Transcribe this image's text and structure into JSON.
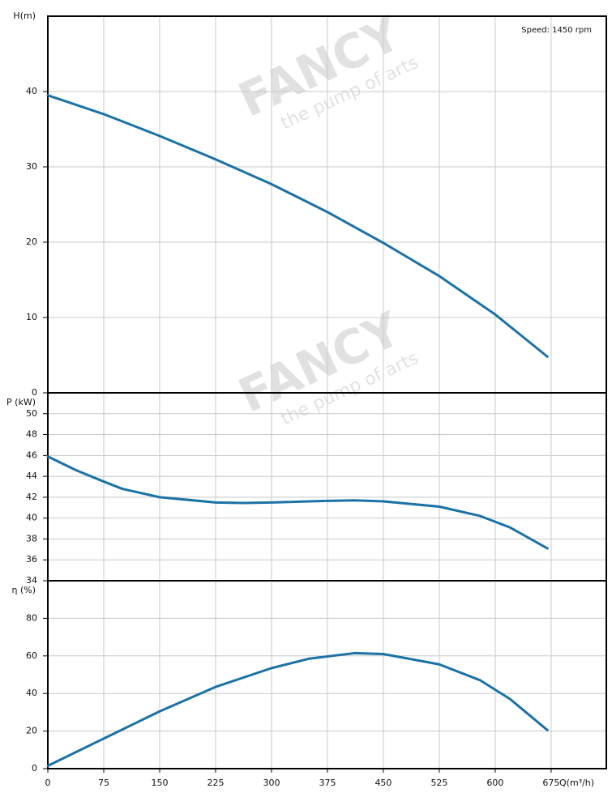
{
  "chart_data": [
    {
      "type": "line",
      "ylabel": "H(m)",
      "annotation": "Speed: 1450 rpm",
      "x": [
        0,
        75,
        150,
        225,
        300,
        375,
        450,
        525,
        600,
        670
      ],
      "series": [
        {
          "color": "#1b72a6",
          "values": [
            39.5,
            37,
            34.1,
            31,
            27.7,
            24,
            19.9,
            15.5,
            10.4,
            4.8
          ]
        }
      ],
      "xlim": [
        0,
        749
      ],
      "xticks": [
        0,
        75,
        150,
        225,
        300,
        375,
        450,
        525,
        600,
        675
      ],
      "ylim": [
        0,
        50
      ],
      "yticks": [
        0,
        10,
        20,
        30,
        40
      ],
      "grid": true
    },
    {
      "type": "line",
      "ylabel": "P (kW)",
      "x": [
        0,
        37.5,
        75,
        100,
        150,
        225,
        262.5,
        300,
        375,
        412,
        450,
        525,
        580,
        620,
        670
      ],
      "series": [
        {
          "color": "#1b72a6",
          "values": [
            45.9,
            44.6,
            43.5,
            42.8,
            42,
            41.5,
            41.45,
            41.5,
            41.65,
            41.7,
            41.6,
            41.1,
            40.2,
            39.1,
            37.1
          ]
        }
      ],
      "xlim": [
        0,
        749
      ],
      "xticks": [
        0,
        75,
        150,
        225,
        300,
        375,
        450,
        525,
        600,
        675
      ],
      "ylim": [
        34,
        52
      ],
      "yticks": [
        34,
        36,
        38,
        40,
        42,
        44,
        46,
        48,
        50
      ],
      "grid": true
    },
    {
      "type": "line",
      "ylabel": "η (%)",
      "xlabel": "Q(m³/h)",
      "x": [
        0,
        75,
        150,
        225,
        300,
        350,
        412,
        450,
        525,
        580,
        620,
        670
      ],
      "series": [
        {
          "color": "#1b72a6",
          "values": [
            1.5,
            16,
            30.5,
            43.5,
            53.5,
            58.5,
            61.5,
            61,
            55.5,
            47,
            37,
            20.5
          ]
        }
      ],
      "xlim": [
        0,
        749
      ],
      "xticks": [
        0,
        75,
        150,
        225,
        300,
        375,
        450,
        525,
        600,
        675
      ],
      "ylim": [
        0,
        100
      ],
      "yticks": [
        0,
        20,
        40,
        60,
        80
      ],
      "grid": true
    }
  ],
  "watermark": [
    "FANCY",
    "the pump of arts"
  ]
}
